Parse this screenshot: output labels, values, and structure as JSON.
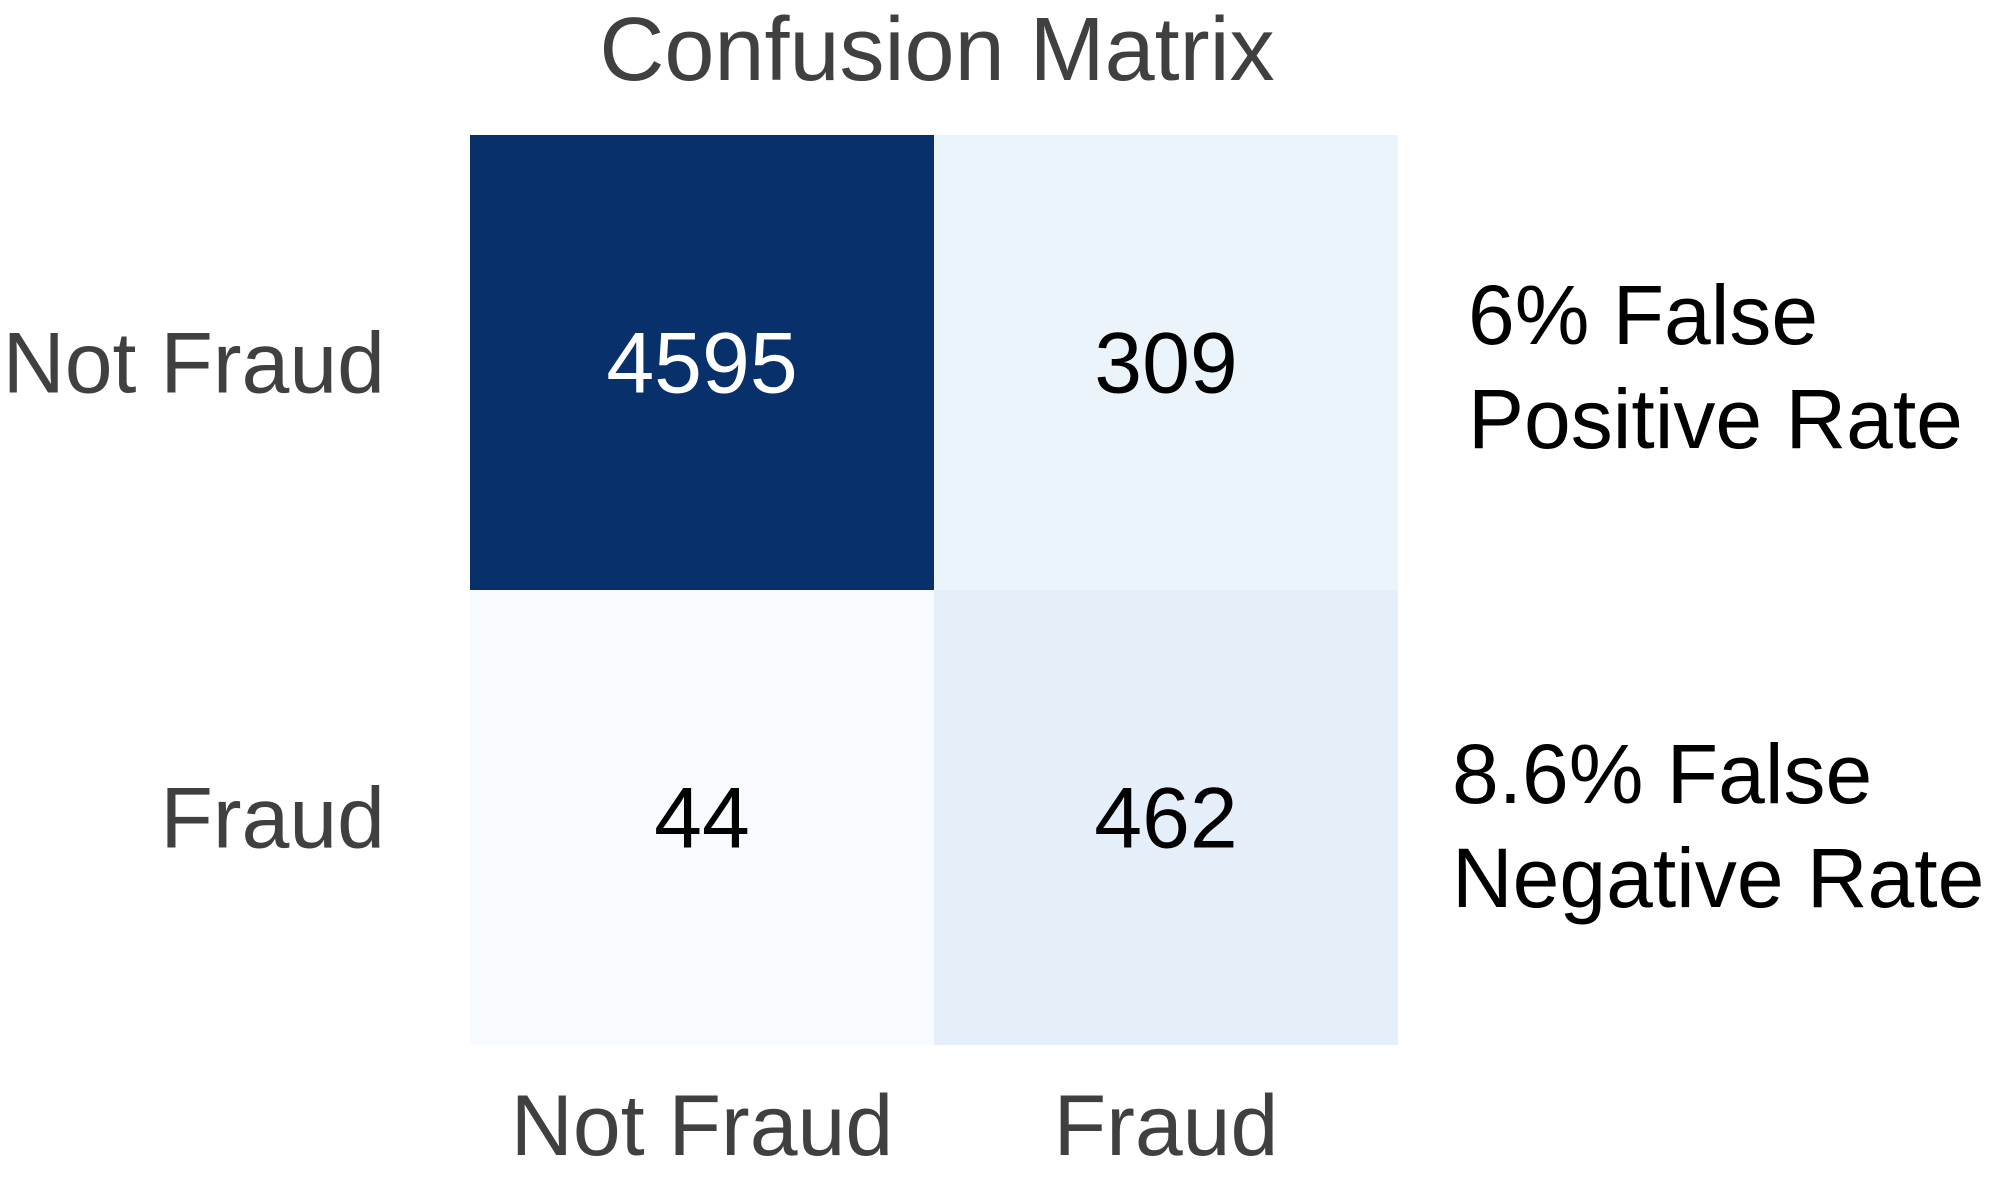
{
  "chart_data": {
    "type": "heatmap",
    "title": "Confusion Matrix",
    "row_labels": [
      "Not Fraud",
      "Fraud"
    ],
    "col_labels": [
      "Not Fraud",
      "Fraud"
    ],
    "values": [
      [
        4595,
        309
      ],
      [
        44,
        462
      ]
    ],
    "colormap": "Blues",
    "annotations": [
      "6% False\nPositive Rate",
      "8.6% False\nNegative Rate"
    ],
    "colors": {
      "title": "#404040",
      "tick_labels": "#404040",
      "annotations": "#000000",
      "cell_text_dark": "#000000",
      "cell_text_light": "#ffffff"
    }
  }
}
